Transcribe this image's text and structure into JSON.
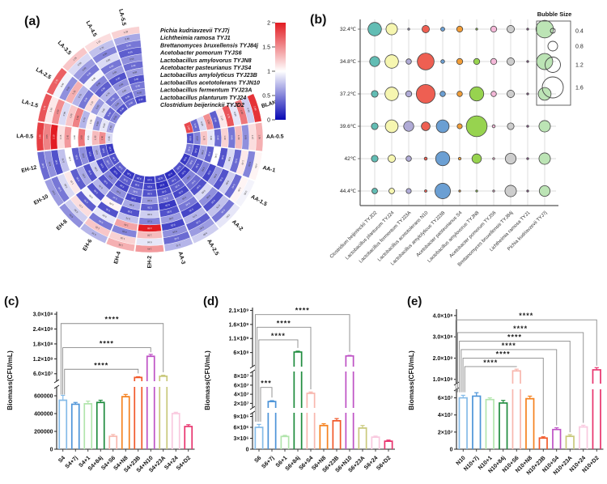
{
  "chart_data": [
    {
      "id": "a",
      "type": "heatmap",
      "subtype": "circular",
      "panel_label": "(a)",
      "rings_outer_to_inner": [
        "Pichia kudriavzevii TYJ7j",
        "Lichtheimia ramosa TYJ1",
        "Brettanomyces bruxellensis TYJ84j",
        "Acetobacter pomorum TYJS6",
        "Lactobacillus amylovorus TYJN8",
        "Acetobacter pasteurianus TYJS4",
        "Lactobacillus amylolyticus TYJ23B",
        "Lactobacillus acetotolerans TYJN10",
        "Lactobacillus fermentum TYJ23A",
        "Lactobacillus planturum TYJ24",
        "Clostridium beijerinckii TYJD2"
      ],
      "sectors_clockwise_from_gap": [
        "BLANK",
        "AA-0.5",
        "AA-1",
        "AA-1.5",
        "AA-2",
        "AA-2.5",
        "AA-3",
        "EH-2",
        "EH-4",
        "EH-6",
        "EH-8",
        "EH-10",
        "EH-12",
        "LA-0.5",
        "LA-1.5",
        "LA-2.5",
        "LA-3.5",
        "LA-4.5",
        "LA-5.5"
      ],
      "colorbar": {
        "ticks": [
          "2",
          "1.5",
          "1",
          "0.5",
          "0"
        ],
        "max_color": "#e21c22",
        "mid_color": "#ffffff",
        "min_color": "#0808b4"
      },
      "values_approx": {
        "BLANK": [
          1.9,
          0.8,
          1.6,
          0.9,
          1.75,
          1.1,
          0.35,
          1.5,
          0.85,
          0.4,
          1.8
        ],
        "AA-0.5": [
          1.35,
          1.15,
          0.55,
          1.3,
          0.45,
          1.2,
          0.4,
          0.9,
          1.25,
          0.5,
          0.3
        ],
        "AA-1": [
          1.05,
          0.5,
          1.1,
          0.4,
          0.85,
          0.3,
          1.0,
          0.35,
          0.6,
          0.25,
          0.45
        ],
        "AA-1.5": [
          0.95,
          1.05,
          0.4,
          0.8,
          0.3,
          0.6,
          0.25,
          0.5,
          0.3,
          0.4,
          0.2
        ],
        "AA-2": [
          0.9,
          0.45,
          0.75,
          0.3,
          0.55,
          0.85,
          0.3,
          0.4,
          0.5,
          0.2,
          0.3
        ],
        "AA-2.5": [
          0.8,
          0.6,
          0.35,
          0.7,
          0.25,
          0.45,
          0.55,
          0.25,
          0.35,
          0.3,
          0.15
        ],
        "AA-3": [
          0.7,
          0.4,
          0.55,
          0.25,
          0.6,
          0.3,
          0.2,
          0.45,
          0.25,
          0.15,
          0.25
        ],
        "EH-2": [
          1.45,
          0.9,
          1.3,
          2.0,
          0.5,
          0.8,
          0.35,
          0.6,
          0.3,
          0.25,
          0.2
        ],
        "EH-4": [
          1.35,
          1.2,
          0.5,
          1.4,
          0.75,
          0.3,
          0.65,
          0.25,
          0.45,
          0.3,
          0.25
        ],
        "EH-6": [
          0.7,
          1.25,
          0.45,
          0.9,
          0.3,
          1.05,
          0.4,
          0.55,
          0.25,
          0.35,
          0.2
        ],
        "EH-8": [
          0.55,
          0.8,
          1.15,
          0.35,
          0.95,
          0.3,
          0.7,
          0.3,
          0.5,
          0.2,
          0.35
        ],
        "EH-10": [
          0.6,
          0.45,
          0.85,
          1.1,
          0.35,
          0.65,
          0.3,
          0.8,
          0.25,
          0.4,
          0.3
        ],
        "EH-12": [
          0.4,
          0.55,
          0.3,
          0.75,
          1.0,
          0.35,
          0.55,
          0.25,
          0.65,
          0.3,
          0.2
        ],
        "LA-0.5": [
          1.85,
          1.55,
          2.1,
          1.15,
          1.45,
          1.0,
          1.6,
          0.95,
          1.3,
          1.5,
          0.85
        ],
        "LA-1.5": [
          1.75,
          1.1,
          1.5,
          0.85,
          1.25,
          1.55,
          0.7,
          1.05,
          0.6,
          0.9,
          0.65
        ],
        "LA-2.5": [
          1.7,
          0.95,
          0.55,
          1.35,
          0.7,
          0.45,
          1.15,
          0.6,
          0.85,
          0.4,
          0.5
        ],
        "LA-3.5": [
          1.25,
          0.85,
          0.6,
          0.45,
          0.95,
          0.5,
          0.35,
          0.7,
          0.45,
          0.55,
          0.3
        ],
        "LA-4.5": [
          1.15,
          0.75,
          0.5,
          0.85,
          0.45,
          0.6,
          0.3,
          0.55,
          0.65,
          0.35,
          0.4
        ],
        "LA-5.5": [
          1.2,
          0.65,
          0.45,
          0.35,
          0.55,
          0.4,
          0.6,
          0.3,
          0.45,
          0.5,
          0.25
        ]
      }
    },
    {
      "id": "b",
      "type": "bubble",
      "panel_label": "(b)",
      "y_categories": [
        "32.4℃",
        "34.8℃",
        "37.2℃",
        "39.6℃",
        "42℃",
        "44.4℃"
      ],
      "x_categories": [
        "Clostridium beijerinckii TYJD2",
        "Lactobacillus planturum TYJ24",
        "Lactobacillus fermentum TYJ23A",
        "Lactobacillus acetotolerans N10",
        "Lactobacillus amylolyticus TYJ23B",
        "Acetobacter pasteurianus S4",
        "Lactobacillus amylovorus TYJN8",
        "Acetobacter pomorum TYJS6",
        "Brettanomyces bruxellensis TYJ84j",
        "Lichtheimia ramosa TYJ1",
        "Pichia kudriavzevii TYJ7j"
      ],
      "colors": [
        "#62bdb4",
        "#f6f6b0",
        "#b0abd6",
        "#ee5f52",
        "#6b9fd3",
        "#f19d38",
        "#97d34f",
        "#f4b8d8",
        "#cdcdcd",
        "#9a5f9e",
        "#bce4b5"
      ],
      "sizes": [
        [
          1.0,
          0.85,
          0.12,
          0.55,
          0.3,
          0.45,
          0.12,
          0.45,
          0.55,
          0.12,
          1.3
        ],
        [
          0.75,
          1.0,
          0.4,
          1.25,
          0.28,
          0.45,
          0.45,
          0.45,
          0.55,
          0.12,
          1.2
        ],
        [
          0.5,
          1.0,
          0.45,
          1.4,
          0.4,
          0.4,
          1.05,
          0.4,
          0.55,
          0.12,
          0.95
        ],
        [
          0.5,
          0.95,
          0.75,
          0.65,
          0.95,
          0.38,
          1.55,
          0.22,
          0.5,
          0.15,
          0.85
        ],
        [
          0.5,
          0.55,
          0.4,
          0.22,
          1.05,
          0.2,
          0.7,
          0.15,
          0.8,
          0.15,
          0.85
        ],
        [
          0.42,
          0.42,
          0.38,
          0.18,
          1.15,
          0.06,
          0.06,
          0.06,
          0.85,
          0.12,
          0.8
        ]
      ],
      "legend": {
        "title": "Bubble Size",
        "values": [
          "0.4",
          "0.8",
          "1.2",
          "1.6"
        ]
      }
    },
    {
      "id": "c",
      "type": "bar",
      "panel_label": "(c)",
      "ylabel": "Biomass(CFU/mL)",
      "categories": [
        "S4",
        "S4+7j",
        "S4+1",
        "S4+84j",
        "S4+S6",
        "S4+N8",
        "S4+23B",
        "S4+N10",
        "S4+23A",
        "S4+24",
        "S4+D2"
      ],
      "values": [
        550000,
        505000,
        510000,
        525000,
        145000,
        590000,
        45000000,
        130000000,
        50000000,
        400000,
        255000
      ],
      "errors": [
        55000,
        20000,
        30000,
        25000,
        20000,
        25000,
        3000000,
        8000000,
        4000000,
        15000,
        20000
      ],
      "segments": [
        {
          "v0": 0,
          "v1": 700000,
          "ticks": [
            [
              0,
              "0"
            ],
            [
              200000,
              "200000"
            ],
            [
              400000,
              "400000"
            ],
            [
              600000,
              "600000"
            ]
          ]
        },
        {
          "v0": 30000000,
          "v1": 310000000,
          "ticks": [
            [
              60000000,
              "6.0×10⁷"
            ],
            [
              120000000,
              "1.2×10⁸"
            ],
            [
              180000000,
              "1.8×10⁸"
            ],
            [
              240000000,
              "2.4×10⁸"
            ],
            [
              300000000,
              "3.0×10⁸"
            ]
          ]
        }
      ],
      "significance": [
        {
          "a": 0,
          "b": 6,
          "stars": "****",
          "level": 78000000
        },
        {
          "a": 0,
          "b": 7,
          "stars": "****",
          "level": 165000000
        },
        {
          "a": 0,
          "b": 8,
          "stars": "****",
          "level": 262000000
        }
      ]
    },
    {
      "id": "d",
      "type": "bar",
      "panel_label": "(d)",
      "ylabel": "Biomass(CFU/mL)",
      "categories": [
        "S6",
        "S6+7j",
        "S6+1",
        "S6+84j",
        "S6+S4",
        "S6+N8",
        "S6+23B",
        "S6+N10",
        "S6+23A",
        "S6+24",
        "S6+D2"
      ],
      "values": [
        6000000,
        24000000,
        3500000,
        620000000,
        42000000,
        6500000,
        7800000,
        480000000,
        5800000,
        3300000,
        2200000
      ],
      "errors": [
        800000,
        2000000,
        300000,
        30000000,
        3000000,
        500000,
        600000,
        20000000,
        700000,
        300000,
        300000
      ],
      "segments": [
        {
          "v0": 0,
          "v1": 10000000,
          "ticks": [
            [
              0,
              "0"
            ],
            [
              3000000,
              "3×10⁶"
            ],
            [
              6000000,
              "6×10⁶"
            ],
            [
              9000000,
              "9×10⁶"
            ]
          ]
        },
        {
          "v0": 10000000,
          "v1": 90000000,
          "ticks": [
            [
              20000000,
              "2×10⁷"
            ],
            [
              40000000,
              "4×10⁷"
            ],
            [
              60000000,
              "6×10⁷"
            ],
            [
              80000000,
              "8×10⁷"
            ]
          ]
        },
        {
          "v0": 100000000,
          "v1": 2200000000,
          "ticks": [
            [
              600000000,
              "6×10⁸"
            ],
            [
              1100000000,
              "1.1×10⁹"
            ],
            [
              1600000000,
              "1.6×10⁹"
            ],
            [
              2100000000,
              "2.1×10⁹"
            ]
          ]
        }
      ],
      "significance": [
        {
          "a": 0,
          "b": 1,
          "stars": "***",
          "level": 55000000
        },
        {
          "a": 0,
          "b": 3,
          "stars": "****",
          "level": 1050000000
        },
        {
          "a": 0,
          "b": 4,
          "stars": "****",
          "level": 1500000000
        },
        {
          "a": 0,
          "b": 7,
          "stars": "****",
          "level": 1950000000
        }
      ]
    },
    {
      "id": "e",
      "type": "bar",
      "panel_label": "(e)",
      "ylabel": "Biomass(CFU/mL)",
      "categories": [
        "N10",
        "N10+7j",
        "N10+1",
        "N10+84j",
        "N10+S6",
        "N10+N8",
        "N10+23B",
        "N10+S4",
        "N10+23A",
        "N10+24",
        "N10+D2"
      ],
      "values": [
        60000000,
        62000000,
        58000000,
        54000000,
        140000000,
        59000000,
        13000000,
        23000000,
        15000000,
        26000000,
        145000000
      ],
      "errors": [
        3000000,
        4000000,
        2000000,
        3000000,
        8000000,
        3000000,
        1500000,
        2000000,
        2000000,
        2000000,
        10000000
      ],
      "segments": [
        {
          "v0": 0,
          "v1": 70000000,
          "ticks": [
            [
              0,
              "0"
            ],
            [
              20000000,
              "2×10⁷"
            ],
            [
              40000000,
              "4×10⁷"
            ],
            [
              60000000,
              "6×10⁷"
            ]
          ]
        },
        {
          "v0": 80000000,
          "v1": 430000000,
          "ticks": [
            [
              100000000,
              "1.0×10⁸"
            ],
            [
              200000000,
              "2.0×10⁸"
            ],
            [
              300000000,
              "3.0×10⁸"
            ],
            [
              400000000,
              "4.0×10⁸"
            ]
          ]
        }
      ],
      "significance": [
        {
          "a": 0,
          "b": 4,
          "stars": "****",
          "level": 160000000
        },
        {
          "a": 0,
          "b": 6,
          "stars": "****",
          "level": 200000000
        },
        {
          "a": 0,
          "b": 7,
          "stars": "****",
          "level": 240000000
        },
        {
          "a": 0,
          "b": 8,
          "stars": "****",
          "level": 280000000
        },
        {
          "a": 0,
          "b": 9,
          "stars": "****",
          "level": 320000000
        },
        {
          "a": 0,
          "b": 10,
          "stars": "****",
          "level": 380000000
        }
      ]
    }
  ],
  "bar_palette": [
    "#85bbe8",
    "#4d94d8",
    "#b2e5ad",
    "#1f8c3e",
    "#f8b7ae",
    "#f5821f",
    "#f1592a",
    "#be52c5",
    "#c9c97c",
    "#f9c9df",
    "#e8336d"
  ]
}
